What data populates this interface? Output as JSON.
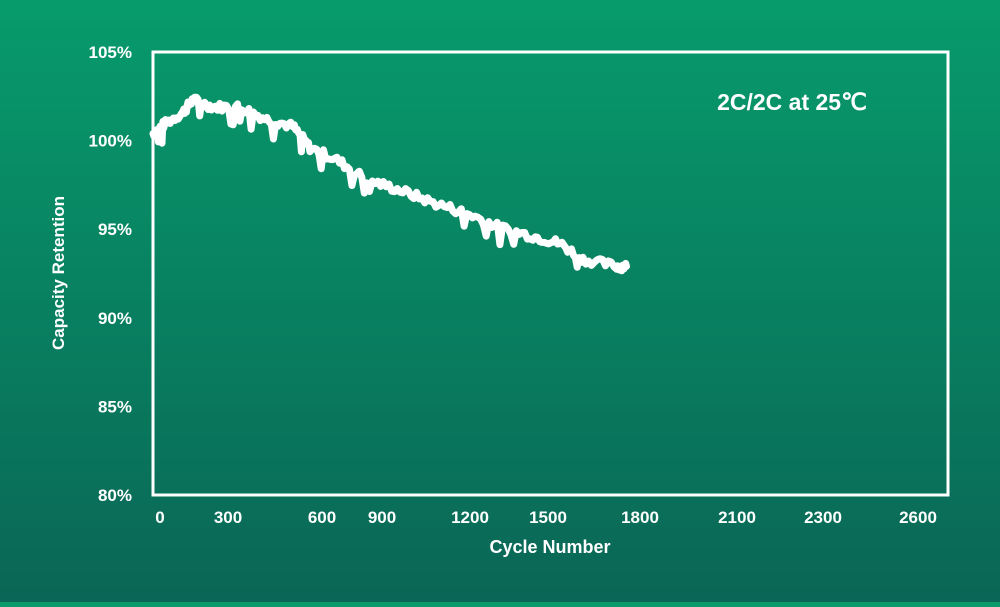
{
  "chart_data": {
    "type": "line",
    "title": "",
    "annotation": "2C/2C at 25℃",
    "xlabel": "Cycle Number",
    "ylabel": "Capacity Retention",
    "x_tick_labels": [
      "0",
      "300",
      "600",
      "900",
      "1200",
      "1500",
      "1800",
      "2100",
      "2300",
      "2600"
    ],
    "y_tick_labels": [
      "105%",
      "100%",
      "95%",
      "90%",
      "85%",
      "80%"
    ],
    "y_ticks": [
      105,
      100,
      95,
      90,
      85,
      80
    ],
    "xlim": [
      0,
      2600
    ],
    "ylim": [
      80,
      105
    ],
    "grid": false,
    "line_color": "#ffffff",
    "background_colors": [
      "#079b6b",
      "#0a6656"
    ],
    "series": [
      {
        "x": [
          0,
          40,
          111,
          148,
          222,
          321,
          421,
          517,
          580,
          680,
          790,
          913,
          1035,
          1160,
          1282,
          1404,
          1504,
          1589,
          1714,
          1750
        ],
        "y": [
          100.4,
          100.9,
          101.6,
          102.3,
          101.9,
          101.9,
          101.2,
          100.8,
          99.6,
          98.9,
          97.8,
          97.2,
          96.5,
          95.9,
          95.1,
          94.6,
          94.2,
          93.3,
          92.9,
          92.9
        ]
      }
    ]
  }
}
